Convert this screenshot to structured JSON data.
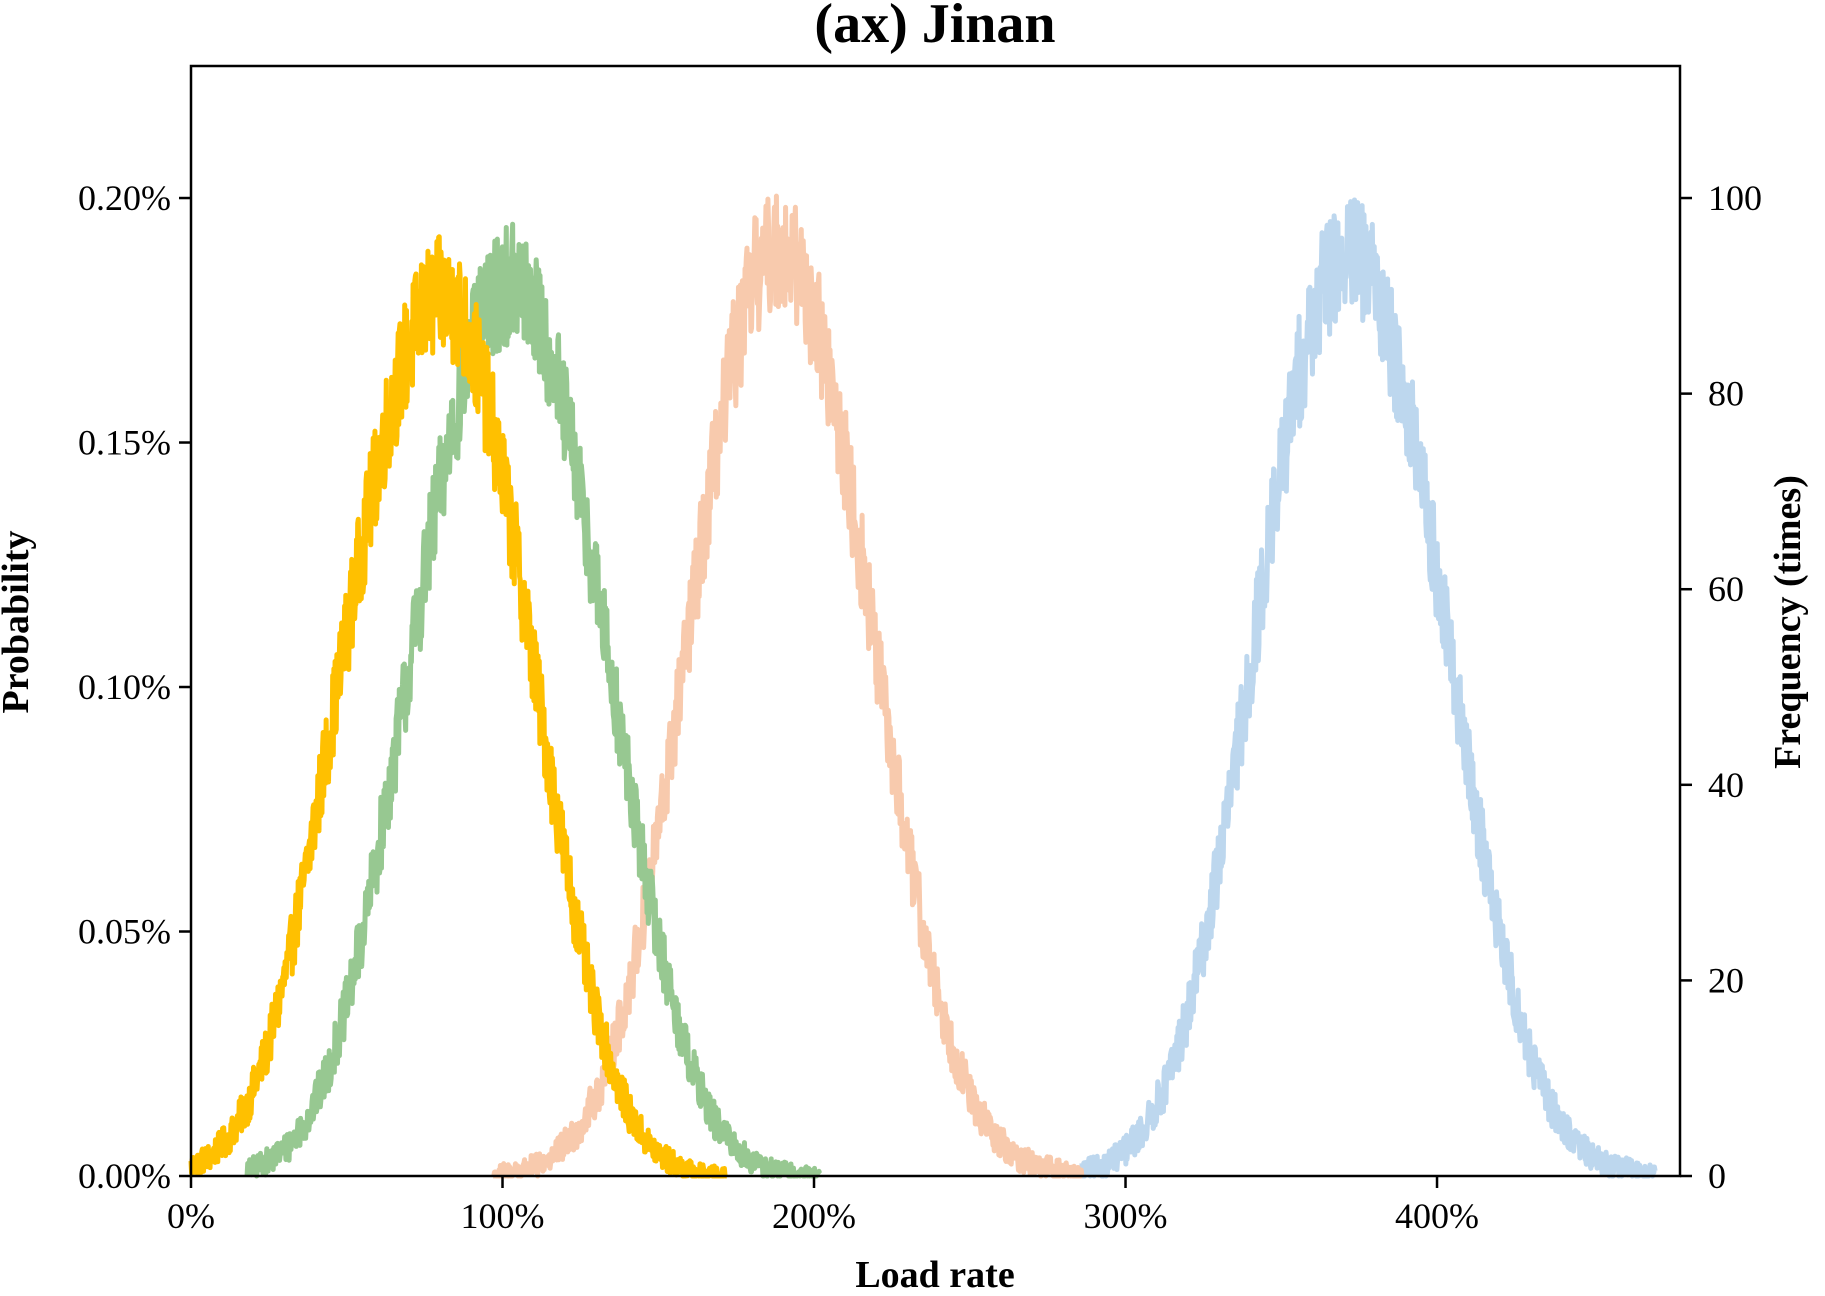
{
  "chart_data": {
    "type": "line",
    "title": "(ax) Jinan",
    "xlabel": "Load rate",
    "ylabel_left": "Probability",
    "ylabel_right": "Frequency (times)",
    "xlim": [
      0,
      478
    ],
    "ylim_left": [
      0,
      0.00227
    ],
    "ylim_right": [
      0,
      113.5
    ],
    "x_ticks": [
      0,
      100,
      200,
      300,
      400
    ],
    "x_tick_labels": [
      "0%",
      "100%",
      "200%",
      "300%",
      "400%"
    ],
    "y_left_ticks": [
      0,
      0.0005,
      0.001,
      0.0015,
      0.002
    ],
    "y_left_tick_labels": [
      "0.00%",
      "0.05%",
      "0.10%",
      "0.15%",
      "0.20%"
    ],
    "y_right_ticks": [
      0,
      20,
      40,
      60,
      80,
      100
    ],
    "y_right_tick_labels": [
      "0",
      "20",
      "40",
      "60",
      "80",
      "100"
    ],
    "grid": false,
    "legend": "none",
    "series": [
      {
        "color": "#FFC000",
        "x_range": [
          0,
          172
        ],
        "values": [
          2e-05,
          4e-05,
          8e-05,
          0.00015,
          0.00026,
          0.00042,
          0.00062,
          0.00085,
          0.00108,
          0.0013,
          0.0015,
          0.00165,
          0.00176,
          0.0018,
          0.00177,
          0.00166,
          0.00149,
          0.00127,
          0.00102,
          0.00077,
          0.00055,
          0.00036,
          0.00022,
          0.00012,
          6e-05,
          3e-05,
          1e-05,
          0.0,
          0.0
        ]
      },
      {
        "color": "#97C891",
        "x_range": [
          18,
          202
        ],
        "values": [
          1e-05,
          3e-05,
          6e-05,
          0.00012,
          0.00022,
          0.00037,
          0.00057,
          0.00081,
          0.00106,
          0.00131,
          0.00153,
          0.0017,
          0.0018,
          0.00183,
          0.00178,
          0.00165,
          0.00146,
          0.00122,
          0.00097,
          0.00072,
          0.0005,
          0.00032,
          0.00019,
          0.0001,
          5e-05,
          2e-05,
          1e-05,
          0.0,
          0.0
        ]
      },
      {
        "color": "#F8CAAD",
        "x_range": [
          97,
          286
        ],
        "values": [
          0.0,
          1e-05,
          2e-05,
          5e-05,
          0.0001,
          0.00019,
          0.00034,
          0.00055,
          0.00082,
          0.00112,
          0.00142,
          0.00167,
          0.00184,
          0.0019,
          0.00186,
          0.00172,
          0.0015,
          0.00123,
          0.00094,
          0.00067,
          0.00044,
          0.00027,
          0.00015,
          8e-05,
          4e-05,
          2e-05,
          1e-05,
          0.0
        ]
      },
      {
        "color": "#BDD7EE",
        "x_range": [
          286,
          470
        ],
        "values": [
          1e-05,
          2e-05,
          5e-05,
          0.0001,
          0.00019,
          0.00033,
          0.00053,
          0.00078,
          0.00106,
          0.00135,
          0.0016,
          0.00178,
          0.00187,
          0.00188,
          0.0018,
          0.00164,
          0.00142,
          0.00116,
          0.00089,
          0.00064,
          0.00043,
          0.00026,
          0.00015,
          8e-05,
          4e-05,
          2e-05,
          1e-05,
          0.0
        ]
      }
    ]
  }
}
